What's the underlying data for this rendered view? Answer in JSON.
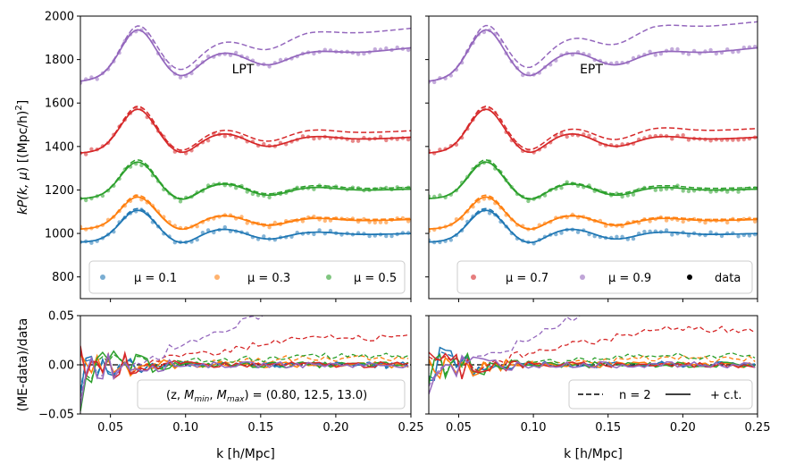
{
  "colors": {
    "mu_0.1": "#1f77b4",
    "mu_0.3": "#ff7f0e",
    "mu_0.5": "#2ca02c",
    "mu_0.7": "#d62728",
    "mu_0.9": "#9467bd"
  },
  "chart_data": [
    {
      "type": "line",
      "panel": "top-left",
      "annotation": "LPT",
      "xlim": [
        0.03,
        0.25
      ],
      "ylim": [
        700,
        2000
      ],
      "ylabel": "kP(k, μ) [(Mpc/h)²]",
      "yticks": [
        "800",
        "1000",
        "1200",
        "1400",
        "1600",
        "1800",
        "2000"
      ],
      "legend": {
        "placement": "lower",
        "entries": [
          "μ = 0.1",
          "μ = 0.3",
          "μ = 0.5"
        ]
      },
      "series": [
        {
          "name": "μ = 0.1",
          "color": "#1f77b4",
          "base": 960,
          "bao": 1.0,
          "slope": 180,
          "dash_offset": 0,
          "solid": true
        },
        {
          "name": "μ = 0.3",
          "color": "#ff7f0e",
          "base": 1020,
          "bao": 1.0,
          "slope": 200,
          "dash_offset": 5,
          "solid": true
        },
        {
          "name": "μ = 0.5",
          "color": "#2ca02c",
          "base": 1160,
          "bao": 1.15,
          "slope": 200,
          "dash_offset": 8,
          "solid": true
        },
        {
          "name": "μ = 0.7",
          "color": "#d62728",
          "base": 1370,
          "bao": 1.35,
          "slope": 330,
          "dash_offset": 30,
          "solid": true
        },
        {
          "name": "μ = 0.9",
          "color": "#9467bd",
          "base": 1700,
          "bao": 1.5,
          "slope": 700,
          "dash_offset": 90,
          "solid": true
        }
      ]
    },
    {
      "type": "line",
      "panel": "top-right",
      "annotation": "EPT",
      "xlim": [
        0.03,
        0.25
      ],
      "ylim": [
        700,
        2000
      ],
      "legend": {
        "placement": "lower",
        "entries": [
          "μ = 0.7",
          "μ = 0.9",
          "data"
        ]
      },
      "series": [
        {
          "name": "μ = 0.1",
          "color": "#1f77b4",
          "base": 960,
          "bao": 1.0,
          "slope": 180,
          "dash_offset": 0
        },
        {
          "name": "μ = 0.3",
          "color": "#ff7f0e",
          "base": 1020,
          "bao": 1.0,
          "slope": 200,
          "dash_offset": 5
        },
        {
          "name": "μ = 0.5",
          "color": "#2ca02c",
          "base": 1160,
          "bao": 1.15,
          "slope": 200,
          "dash_offset": 8
        },
        {
          "name": "μ = 0.7",
          "color": "#d62728",
          "base": 1370,
          "bao": 1.35,
          "slope": 330,
          "dash_offset": 40
        },
        {
          "name": "μ = 0.9",
          "color": "#9467bd",
          "base": 1700,
          "bao": 1.5,
          "slope": 700,
          "dash_offset": 120
        }
      ]
    },
    {
      "type": "line",
      "panel": "bottom-left",
      "xlim": [
        0.03,
        0.25
      ],
      "ylim": [
        -0.05,
        0.05
      ],
      "xlabel": "k [h/Mpc]",
      "ylabel": "(ME-data)/data",
      "xticks": [
        "0.05",
        "0.10",
        "0.15",
        "0.20",
        "0.25"
      ],
      "yticks": [
        "−0.05",
        "0.00",
        "0.05"
      ],
      "annotation_box": "(z, M_min, M_max) = (0.80, 12.5, 13.0)"
    },
    {
      "type": "line",
      "panel": "bottom-right",
      "xlim": [
        0.03,
        0.25
      ],
      "ylim": [
        -0.05,
        0.05
      ],
      "xlabel": "k [h/Mpc]",
      "xticks": [
        "0.05",
        "0.10",
        "0.15",
        "0.20",
        "0.25"
      ],
      "legend": {
        "placement": "lower-right",
        "entries": [
          "n = 2",
          "+ c.t."
        ]
      }
    }
  ],
  "labels": {
    "lpt": "LPT",
    "ept": "EPT",
    "ylabel_top_pre": "kP(k, ",
    "ylabel_top_post": ") [(Mpc/h)",
    "ylabel_bottom": "(ME-data)/data",
    "xlabel": "k [h/Mpc]",
    "leg_mu01": "μ = 0.1",
    "leg_mu03": "μ = 0.3",
    "leg_mu05": "μ = 0.5",
    "leg_mu07": "μ = 0.7",
    "leg_mu09": "μ = 0.9",
    "leg_data": "data",
    "leg_n2": "n = 2",
    "leg_ct": "+ c.t.",
    "anno_pre": "(z, ",
    "anno_post": ") = (0.80, 12.5, 13.0)"
  }
}
